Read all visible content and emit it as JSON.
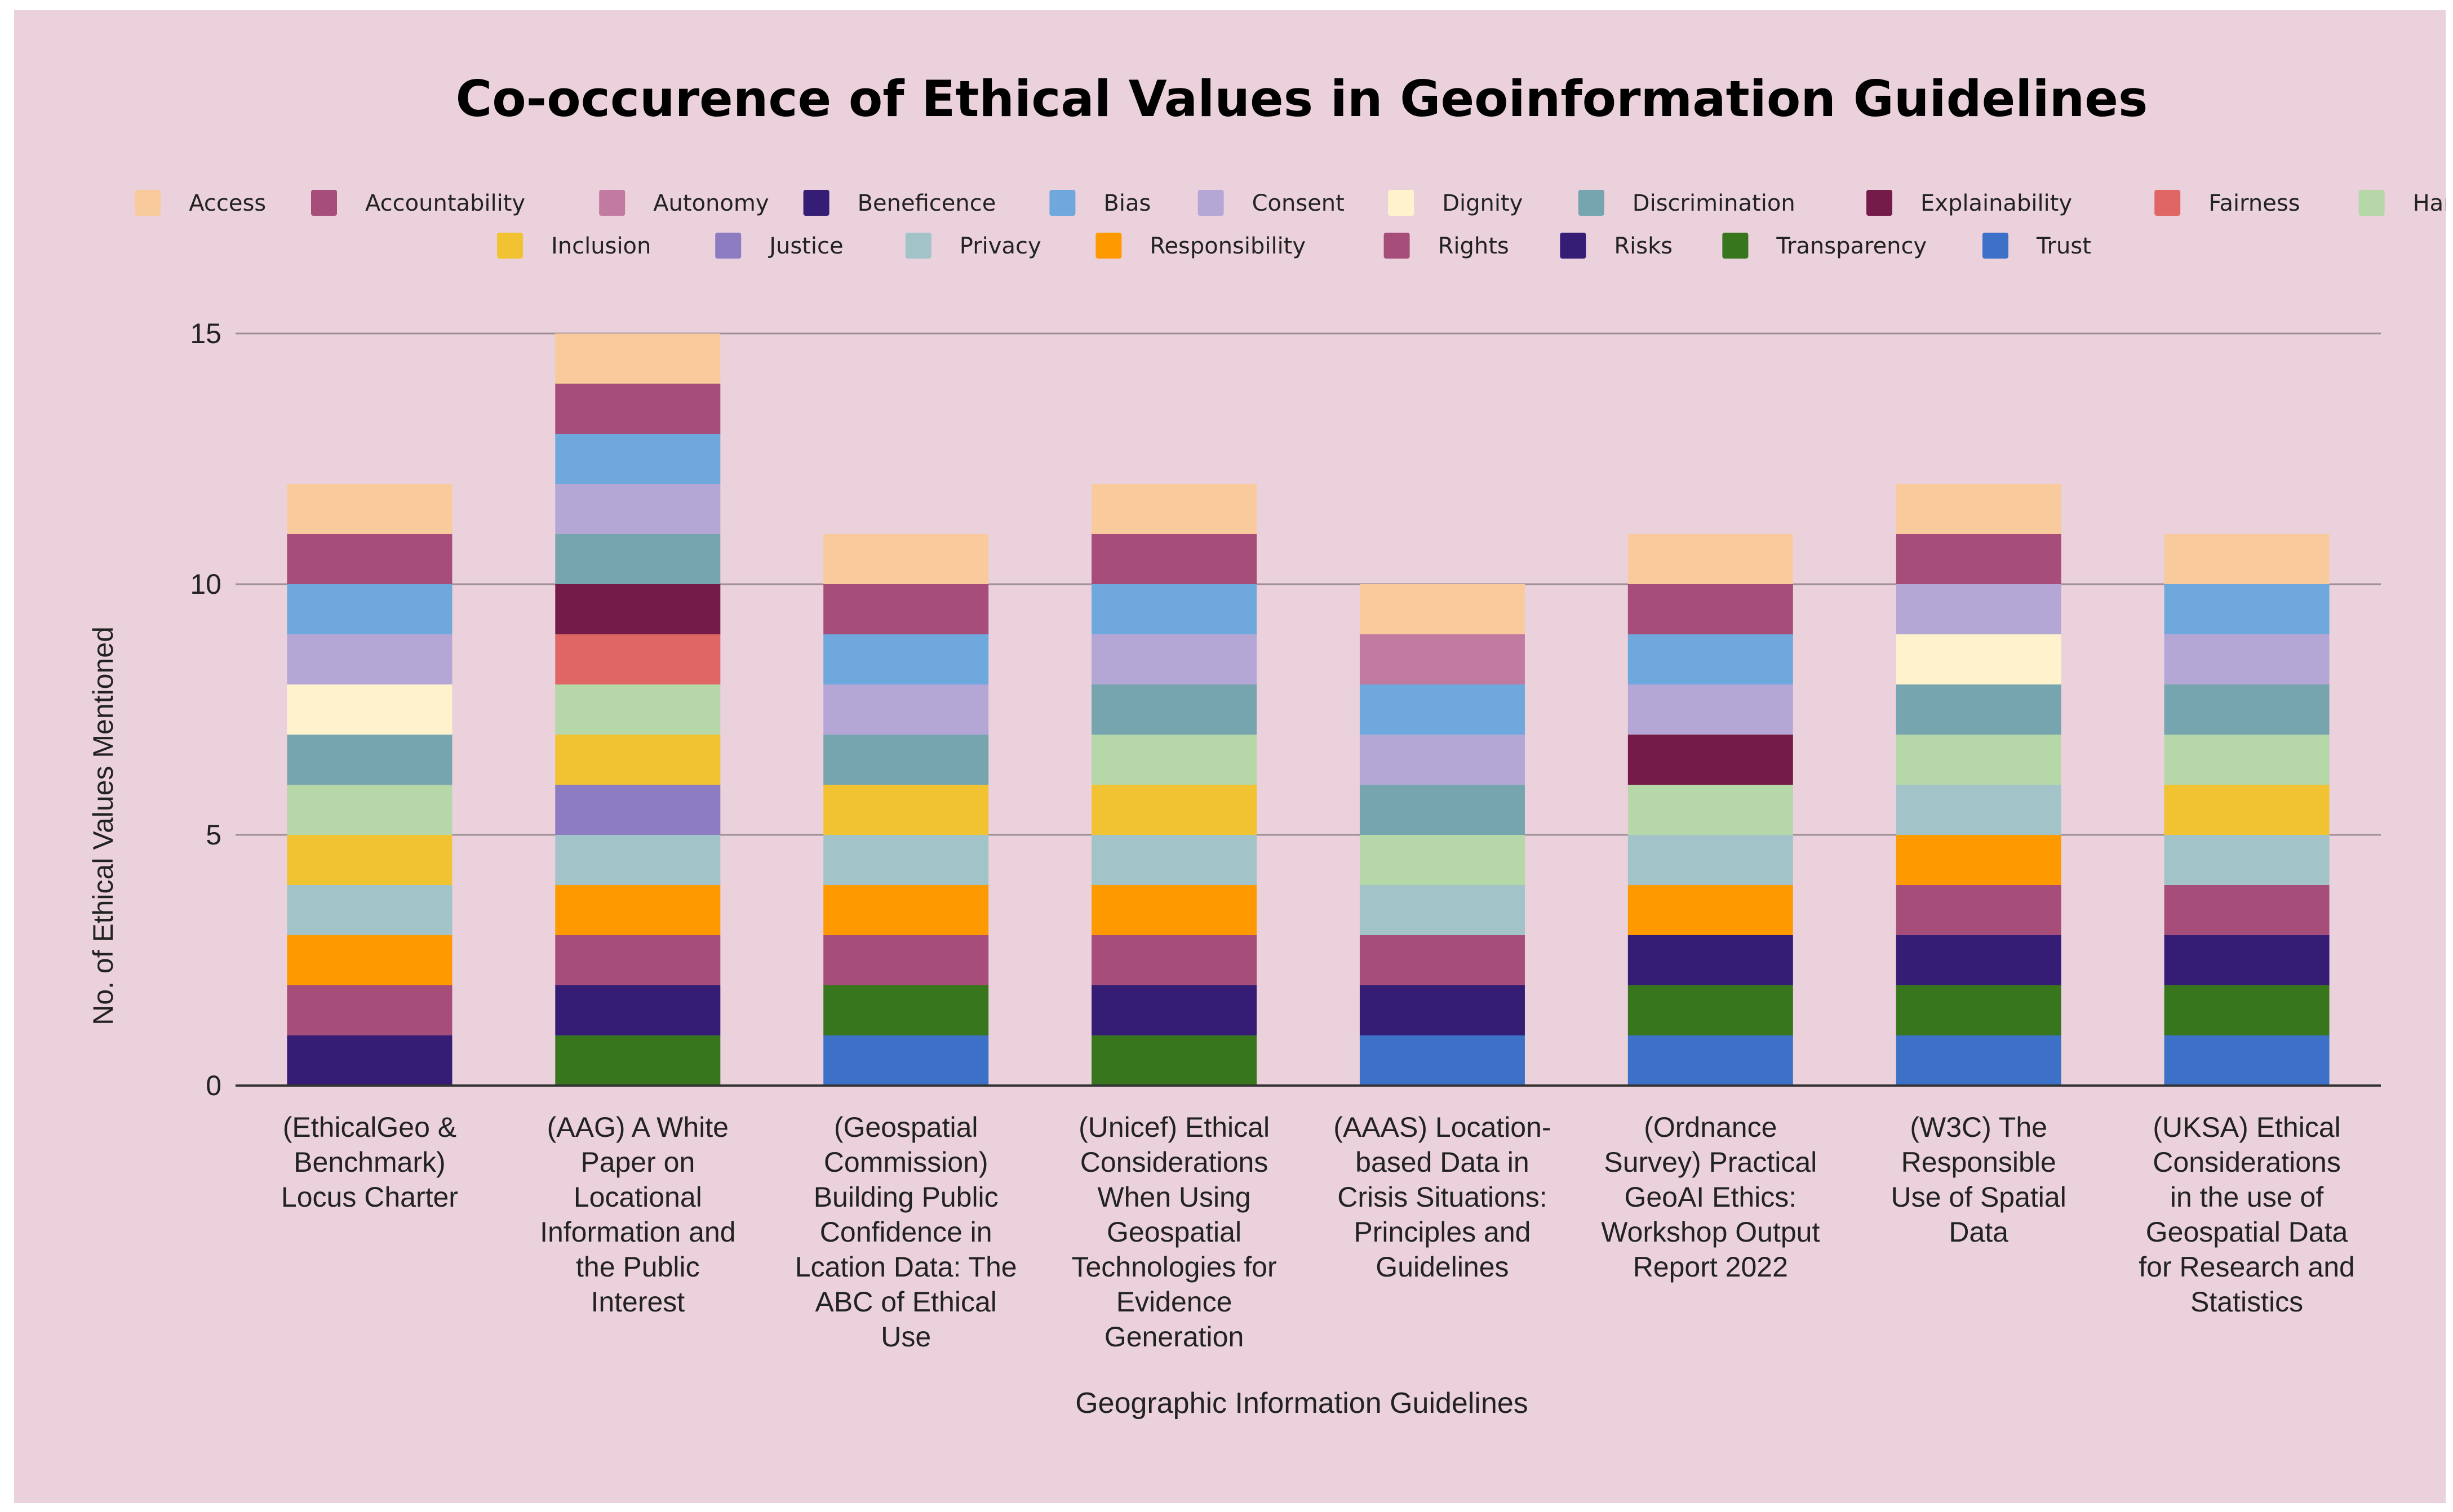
{
  "chart_data": {
    "type": "bar",
    "stacked": true,
    "title": "Co-occurence of Ethical Values in Geoinformation Guidelines",
    "xlabel": "Geographic Information Guidelines",
    "ylabel": "No. of Ethical Values Mentioned",
    "ylim": [
      0,
      15
    ],
    "yticks": [
      0,
      5,
      10,
      15
    ],
    "grid": true,
    "legend_position": "top",
    "categories": [
      [
        "(EthicalGeo &",
        "Benchmark)",
        "Locus Charter"
      ],
      [
        "(AAG) A White",
        "Paper on",
        "Locational",
        "Information and",
        "the Public",
        "Interest"
      ],
      [
        "(Geospatial",
        "Commission)",
        "Building Public",
        "Confidence in",
        "Lcation Data: The",
        "ABC of Ethical",
        "Use"
      ],
      [
        "(Unicef) Ethical",
        "Considerations",
        "When Using",
        "Geospatial",
        "Technologies for",
        "Evidence",
        "Generation"
      ],
      [
        "(AAAS) Location-",
        "based Data in",
        "Crisis Situations:",
        "Principles and",
        "Guidelines"
      ],
      [
        "(Ordnance",
        "Survey) Practical",
        "GeoAI Ethics:",
        "Workshop Output",
        "Report 2022"
      ],
      [
        "(W3C) The",
        "Responsible",
        "Use of Spatial",
        "Data"
      ],
      [
        "(UKSA) Ethical",
        "Considerations",
        "in the use of",
        "Geospatial Data",
        "for Research and",
        "Statistics"
      ]
    ],
    "series": [
      {
        "name": "Access",
        "color": "#f9cb9c",
        "values": [
          1,
          1,
          1,
          1,
          1,
          1,
          1,
          1
        ]
      },
      {
        "name": "Accountability",
        "color": "#a64d79",
        "values": [
          1,
          1,
          1,
          1,
          0,
          1,
          1,
          0
        ]
      },
      {
        "name": "Autonomy",
        "color": "#c27ba0",
        "values": [
          0,
          0,
          0,
          0,
          1,
          0,
          0,
          0
        ]
      },
      {
        "name": "Beneficence",
        "color": "#351c75",
        "values": [
          1,
          1,
          0,
          1,
          1,
          1,
          1,
          1
        ]
      },
      {
        "name": "Bias",
        "color": "#6fa8dc",
        "values": [
          1,
          1,
          1,
          1,
          1,
          1,
          0,
          1
        ]
      },
      {
        "name": "Consent",
        "color": "#b4a7d6",
        "values": [
          1,
          1,
          1,
          1,
          1,
          1,
          1,
          1
        ]
      },
      {
        "name": "Dignity",
        "color": "#fff2cc",
        "values": [
          1,
          0,
          0,
          0,
          0,
          0,
          1,
          0
        ]
      },
      {
        "name": "Discrimination",
        "color": "#76a5af",
        "values": [
          1,
          1,
          1,
          1,
          1,
          0,
          1,
          1
        ]
      },
      {
        "name": "Explainability",
        "color": "#741b47",
        "values": [
          0,
          1,
          0,
          0,
          0,
          1,
          0,
          0
        ]
      },
      {
        "name": "Fairness",
        "color": "#e06666",
        "values": [
          0,
          1,
          0,
          0,
          0,
          0,
          0,
          0
        ]
      },
      {
        "name": "Harm",
        "color": "#b6d7a8",
        "values": [
          1,
          1,
          0,
          1,
          1,
          1,
          1,
          1
        ]
      },
      {
        "name": "Inclusion",
        "color": "#f1c232",
        "values": [
          1,
          1,
          1,
          1,
          0,
          0,
          0,
          1
        ]
      },
      {
        "name": "Justice",
        "color": "#8e7cc3",
        "values": [
          0,
          1,
          0,
          0,
          0,
          0,
          0,
          0
        ]
      },
      {
        "name": "Privacy",
        "color": "#a2c4c9",
        "values": [
          1,
          1,
          1,
          1,
          1,
          1,
          1,
          1
        ]
      },
      {
        "name": "Responsibility",
        "color": "#ff9900",
        "values": [
          1,
          1,
          1,
          1,
          0,
          1,
          1,
          0
        ]
      },
      {
        "name": "Rights",
        "color": "#a64d79",
        "values": [
          1,
          1,
          1,
          1,
          1,
          0,
          1,
          1
        ]
      },
      {
        "name": "Risks",
        "color": "#351c75",
        "values": [
          0,
          0,
          0,
          0,
          0,
          0,
          0,
          0
        ]
      },
      {
        "name": "Transparency",
        "color": "#38761d",
        "values": [
          0,
          1,
          1,
          1,
          0,
          1,
          1,
          1
        ]
      },
      {
        "name": "Trust",
        "color": "#3d71c8",
        "values": [
          0,
          0,
          1,
          0,
          1,
          1,
          1,
          1
        ]
      }
    ],
    "stack_order_bottom_to_top": [
      [
        "Beneficence",
        "Rights",
        "Responsibility",
        "Privacy",
        "Inclusion",
        "Harm",
        "Discrimination",
        "Dignity",
        "Consent",
        "Bias",
        "Accountability",
        "Access"
      ],
      [
        "Transparency",
        "Beneficence",
        "Rights",
        "Responsibility",
        "Privacy",
        "Justice",
        "Inclusion",
        "Harm",
        "Fairness",
        "Explainability",
        "Discrimination",
        "Consent",
        "Bias",
        "Accountability",
        "Access"
      ],
      [
        "Trust",
        "Transparency",
        "Rights",
        "Responsibility",
        "Privacy",
        "Inclusion",
        "Discrimination",
        "Consent",
        "Bias",
        "Accountability",
        "Access"
      ],
      [
        "Transparency",
        "Beneficence",
        "Rights",
        "Responsibility",
        "Privacy",
        "Inclusion",
        "Harm",
        "Discrimination",
        "Consent",
        "Bias",
        "Accountability",
        "Access"
      ],
      [
        "Trust",
        "Beneficence",
        "Rights",
        "Privacy",
        "Harm",
        "Discrimination",
        "Consent",
        "Bias",
        "Autonomy",
        "Access"
      ],
      [
        "Trust",
        "Transparency",
        "Beneficence",
        "Responsibility",
        "Privacy",
        "Harm",
        "Explainability",
        "Consent",
        "Bias",
        "Accountability",
        "Access"
      ],
      [
        "Trust",
        "Transparency",
        "Beneficence",
        "Rights",
        "Responsibility",
        "Privacy",
        "Harm",
        "Discrimination",
        "Dignity",
        "Consent",
        "Accountability",
        "Access"
      ],
      [
        "Trust",
        "Transparency",
        "Beneficence",
        "Rights",
        "Privacy",
        "Inclusion",
        "Harm",
        "Discrimination",
        "Consent",
        "Bias",
        "Access"
      ]
    ]
  }
}
